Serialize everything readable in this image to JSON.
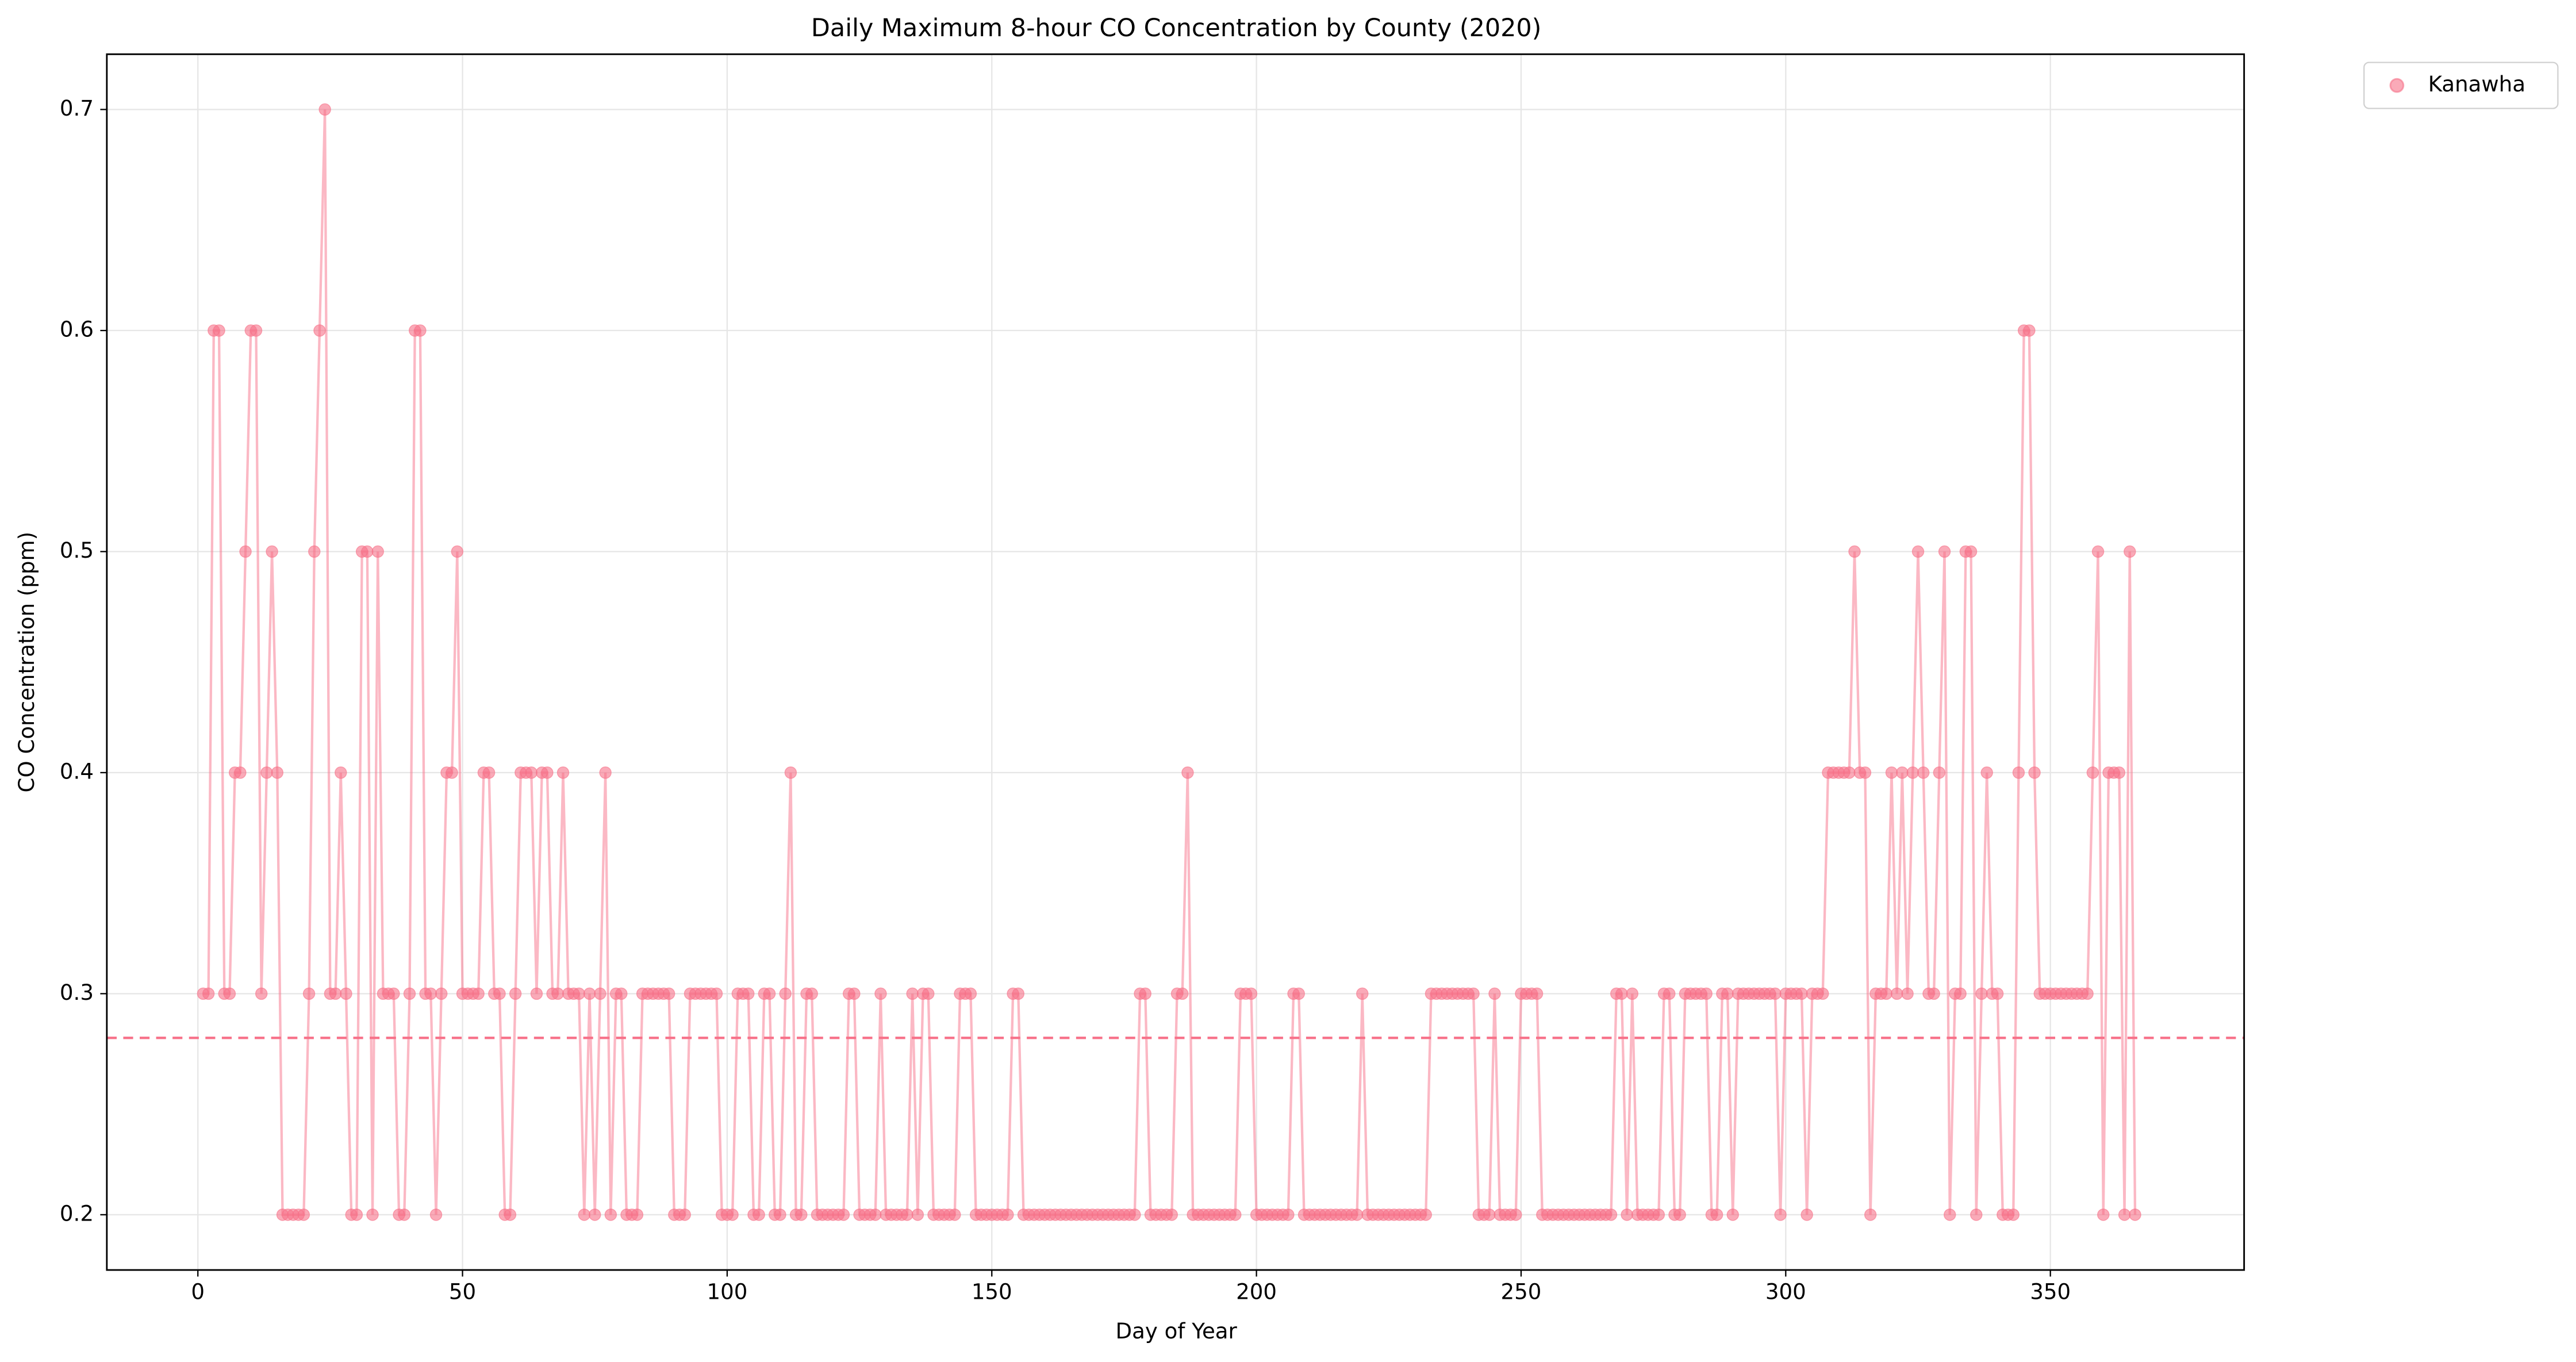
{
  "chart_data": {
    "type": "line",
    "title": "Daily Maximum 8-hour CO Concentration by County (2020)",
    "xlabel": "Day of Year",
    "ylabel": "CO Concentration (ppm)",
    "xlim": [
      -17.2,
      386.6
    ],
    "ylim": [
      0.175,
      0.725
    ],
    "xticks": [
      0,
      50,
      100,
      150,
      200,
      250,
      300,
      350
    ],
    "yticks": [
      0.2,
      0.3,
      0.4,
      0.5,
      0.6,
      0.7
    ],
    "grid": true,
    "legend": "outside upper right",
    "hline": {
      "value": 0.28,
      "color": "#f77189"
    },
    "x": [
      1,
      2,
      3,
      4,
      5,
      6,
      7,
      8,
      9,
      10,
      11,
      12,
      13,
      14,
      15,
      16,
      17,
      18,
      19,
      20,
      21,
      22,
      23,
      24,
      25,
      26,
      27,
      28,
      29,
      30,
      31,
      32,
      33,
      34,
      35,
      36,
      37,
      38,
      39,
      40,
      41,
      42,
      43,
      44,
      45,
      46,
      47,
      48,
      49,
      50,
      51,
      52,
      53,
      54,
      55,
      56,
      57,
      58,
      59,
      60,
      61,
      62,
      63,
      64,
      65,
      66,
      67,
      68,
      69,
      70,
      71,
      72,
      73,
      74,
      75,
      76,
      77,
      78,
      79,
      80,
      81,
      82,
      83,
      84,
      85,
      86,
      87,
      88,
      89,
      90,
      91,
      92,
      93,
      94,
      95,
      96,
      97,
      98,
      99,
      100,
      101,
      102,
      103,
      104,
      105,
      106,
      107,
      108,
      109,
      110,
      111,
      112,
      113,
      114,
      115,
      116,
      117,
      118,
      119,
      120,
      121,
      122,
      123,
      124,
      125,
      126,
      127,
      128,
      129,
      130,
      131,
      132,
      133,
      134,
      135,
      136,
      137,
      138,
      139,
      140,
      141,
      142,
      143,
      144,
      145,
      146,
      147,
      148,
      149,
      150,
      151,
      152,
      153,
      154,
      155,
      156,
      157,
      158,
      159,
      160,
      161,
      162,
      163,
      164,
      165,
      166,
      167,
      168,
      169,
      170,
      171,
      172,
      173,
      174,
      175,
      176,
      177,
      178,
      179,
      180,
      181,
      182,
      183,
      184,
      185,
      186,
      187,
      188,
      189,
      190,
      191,
      192,
      193,
      194,
      195,
      196,
      197,
      198,
      199,
      200,
      201,
      202,
      203,
      204,
      205,
      206,
      207,
      208,
      209,
      210,
      211,
      212,
      213,
      214,
      215,
      216,
      217,
      218,
      219,
      220,
      221,
      222,
      223,
      224,
      225,
      226,
      227,
      228,
      229,
      230,
      231,
      232,
      233,
      234,
      235,
      236,
      237,
      238,
      239,
      240,
      241,
      242,
      243,
      244,
      245,
      246,
      247,
      248,
      249,
      250,
      251,
      252,
      253,
      254,
      255,
      256,
      257,
      258,
      259,
      260,
      261,
      262,
      263,
      264,
      265,
      266,
      267,
      268,
      269,
      270,
      271,
      272,
      273,
      274,
      275,
      276,
      277,
      278,
      279,
      280,
      281,
      282,
      283,
      284,
      285,
      286,
      287,
      288,
      289,
      290,
      291,
      292,
      293,
      294,
      295,
      296,
      297,
      298,
      299,
      300,
      301,
      302,
      303,
      304,
      305,
      306,
      307,
      308,
      309,
      310,
      311,
      312,
      313,
      314,
      315,
      316,
      317,
      318,
      319,
      320,
      321,
      322,
      323,
      324,
      325,
      326,
      327,
      328,
      329,
      330,
      331,
      332,
      333,
      334,
      335,
      336,
      337,
      338,
      339,
      340,
      341,
      342,
      343,
      344,
      345,
      346,
      347,
      348,
      349,
      350,
      351,
      352,
      353,
      354,
      355,
      356,
      357,
      358,
      359,
      360,
      361,
      362,
      363,
      364,
      365,
      366
    ],
    "series": [
      {
        "name": "Kanawha",
        "color": "#f77189",
        "values": [
          0.3,
          0.3,
          0.6,
          0.6,
          0.3,
          0.3,
          0.4,
          0.4,
          0.5,
          0.6,
          0.6,
          0.3,
          0.4,
          0.5,
          0.4,
          0.2,
          0.2,
          0.2,
          0.2,
          0.2,
          0.3,
          0.5,
          0.6,
          0.7,
          0.3,
          0.3,
          0.4,
          0.3,
          0.2,
          0.2,
          0.5,
          0.5,
          0.2,
          0.5,
          0.3,
          0.3,
          0.3,
          0.2,
          0.2,
          0.3,
          0.6,
          0.6,
          0.3,
          0.3,
          0.2,
          0.3,
          0.4,
          0.4,
          0.5,
          0.3,
          0.3,
          0.3,
          0.3,
          0.4,
          0.4,
          0.3,
          0.3,
          0.2,
          0.2,
          0.3,
          0.4,
          0.4,
          0.4,
          0.3,
          0.4,
          0.4,
          0.3,
          0.3,
          0.4,
          0.3,
          0.3,
          0.3,
          0.2,
          0.3,
          0.2,
          0.3,
          0.4,
          0.2,
          0.3,
          0.3,
          0.2,
          0.2,
          0.2,
          0.3,
          0.3,
          0.3,
          0.3,
          0.3,
          0.3,
          0.2,
          0.2,
          0.2,
          0.3,
          0.3,
          0.3,
          0.3,
          0.3,
          0.3,
          0.2,
          0.2,
          0.2,
          0.3,
          0.3,
          0.3,
          0.2,
          0.2,
          0.3,
          0.3,
          0.2,
          0.2,
          0.3,
          0.4,
          0.2,
          0.2,
          0.3,
          0.3,
          0.2,
          0.2,
          0.2,
          0.2,
          0.2,
          0.2,
          0.3,
          0.3,
          0.2,
          0.2,
          0.2,
          0.2,
          0.3,
          0.2,
          0.2,
          0.2,
          0.2,
          0.2,
          0.3,
          0.2,
          0.3,
          0.3,
          0.2,
          0.2,
          0.2,
          0.2,
          0.2,
          0.3,
          0.3,
          0.3,
          0.2,
          0.2,
          0.2,
          0.2,
          0.2,
          0.2,
          0.2,
          0.3,
          0.3,
          0.2,
          0.2,
          0.2,
          0.2,
          0.2,
          0.2,
          0.2,
          0.2,
          0.2,
          0.2,
          0.2,
          0.2,
          0.2,
          0.2,
          0.2,
          0.2,
          0.2,
          0.2,
          0.2,
          0.2,
          0.2,
          0.2,
          0.3,
          0.3,
          0.2,
          0.2,
          0.2,
          0.2,
          0.2,
          0.3,
          0.3,
          0.4,
          0.2,
          0.2,
          0.2,
          0.2,
          0.2,
          0.2,
          0.2,
          0.2,
          0.2,
          0.3,
          0.3,
          0.3,
          0.2,
          0.2,
          0.2,
          0.2,
          0.2,
          0.2,
          0.2,
          0.3,
          0.3,
          0.2,
          0.2,
          0.2,
          0.2,
          0.2,
          0.2,
          0.2,
          0.2,
          0.2,
          0.2,
          0.2,
          0.3,
          0.2,
          0.2,
          0.2,
          0.2,
          0.2,
          0.2,
          0.2,
          0.2,
          0.2,
          0.2,
          0.2,
          0.2,
          0.3,
          0.3,
          0.3,
          0.3,
          0.3,
          0.3,
          0.3,
          0.3,
          0.3,
          0.2,
          0.2,
          0.2,
          0.3,
          0.2,
          0.2,
          0.2,
          0.2,
          0.3,
          0.3,
          0.3,
          0.3,
          0.2,
          0.2,
          0.2,
          0.2,
          0.2,
          0.2,
          0.2,
          0.2,
          0.2,
          0.2,
          0.2,
          0.2,
          0.2,
          0.2,
          0.3,
          0.3,
          0.2,
          0.3,
          0.2,
          0.2,
          0.2,
          0.2,
          0.2,
          0.3,
          0.3,
          0.2,
          0.2,
          0.3,
          0.3,
          0.3,
          0.3,
          0.3,
          0.2,
          0.2,
          0.3,
          0.3,
          0.2,
          0.3,
          0.3,
          0.3,
          0.3,
          0.3,
          0.3,
          0.3,
          0.3,
          0.2,
          0.3,
          0.3,
          0.3,
          0.3,
          0.2,
          0.3,
          0.3,
          0.3,
          0.4,
          0.4,
          0.4,
          0.4,
          0.4,
          0.5,
          0.4,
          0.4,
          0.2,
          0.3,
          0.3,
          0.3,
          0.4,
          0.3,
          0.4,
          0.3,
          0.4,
          0.5,
          0.4,
          0.3,
          0.3,
          0.4,
          0.5,
          0.2,
          0.3,
          0.3,
          0.5,
          0.5,
          0.2,
          0.3,
          0.4,
          0.3,
          0.3,
          0.2,
          0.2,
          0.2,
          0.4,
          0.6,
          0.6,
          0.4,
          0.3,
          0.3,
          0.3,
          0.3,
          0.3,
          0.3,
          0.3,
          0.3,
          0.3,
          0.3,
          0.4,
          0.5,
          0.2,
          0.4,
          0.4,
          0.4,
          0.2,
          0.5,
          0.2
        ]
      }
    ]
  }
}
